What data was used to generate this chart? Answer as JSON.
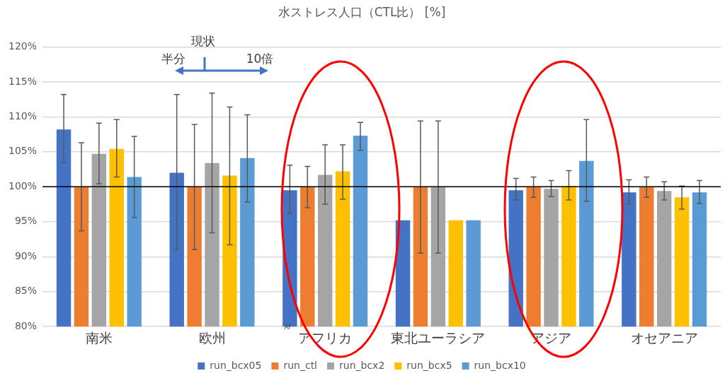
{
  "chart_data": {
    "type": "bar",
    "title": "水ストレス人口（CTL比） [%]",
    "categories": [
      "南米",
      "欧州",
      "アフリカ",
      "東北ユーラシア",
      "アジア",
      "オセアニア"
    ],
    "series": [
      {
        "name": "run_bcx05",
        "color": "#4472c4",
        "values": [
          108.2,
          102.0,
          99.5,
          95.2,
          99.5,
          99.2
        ],
        "errors": [
          [
            103.5,
            113.2
          ],
          [
            91.0,
            113.2
          ],
          [
            96.2,
            103.1
          ],
          null,
          [
            98.1,
            101.2
          ],
          [
            97.5,
            101.0
          ]
        ]
      },
      {
        "name": "run_ctl",
        "color": "#ed7d31",
        "values": [
          100,
          100,
          100,
          100,
          100,
          100
        ],
        "errors": [
          [
            93.7,
            106.3
          ],
          [
            91.0,
            108.9
          ],
          [
            97.0,
            102.9
          ],
          [
            90.5,
            109.4
          ],
          [
            98.5,
            101.4
          ],
          [
            98.5,
            101.4
          ]
        ]
      },
      {
        "name": "run_bcx2",
        "color": "#a5a5a5",
        "values": [
          104.7,
          103.4,
          101.7,
          100,
          99.7,
          99.4
        ],
        "errors": [
          [
            100.4,
            109.1
          ],
          [
            93.4,
            113.4
          ],
          [
            97.5,
            106.0
          ],
          [
            90.5,
            109.4
          ],
          [
            98.6,
            100.9
          ],
          [
            98.1,
            100.7
          ]
        ]
      },
      {
        "name": "run_bcx5",
        "color": "#ffc000",
        "values": [
          105.4,
          101.6,
          102.2,
          95.2,
          100.1,
          98.5
        ],
        "errors": [
          [
            101.4,
            109.6
          ],
          [
            91.7,
            111.4
          ],
          [
            98.2,
            106.0
          ],
          null,
          [
            98.1,
            102.3
          ],
          [
            96.8,
            100.1
          ]
        ]
      },
      {
        "name": "run_bcx10",
        "color": "#5b9bd5",
        "values": [
          101.4,
          104.1,
          107.3,
          95.2,
          103.7,
          99.2
        ],
        "errors": [
          [
            95.6,
            107.2
          ],
          [
            97.8,
            110.3
          ],
          [
            105.2,
            109.2
          ],
          null,
          [
            97.9,
            109.6
          ],
          [
            97.6,
            100.9
          ]
        ]
      }
    ],
    "ylim": [
      80,
      120
    ],
    "yticks": [
      {
        "value": 80,
        "label": "80%"
      },
      {
        "value": 85,
        "label": "85%"
      },
      {
        "value": 90,
        "label": "90%"
      },
      {
        "value": 95,
        "label": "95%"
      },
      {
        "value": 100,
        "label": "100%"
      },
      {
        "value": 105,
        "label": "105%"
      },
      {
        "value": 110,
        "label": "110%"
      },
      {
        "value": 115,
        "label": "115%"
      },
      {
        "value": 120,
        "label": "120%"
      }
    ],
    "ref_lines": [
      {
        "axis": "y",
        "value": 100,
        "color": "#000000"
      }
    ],
    "annotations": [
      "半分",
      "現状",
      "10倍",
      "Af"
    ],
    "grid": "y",
    "legend": "bottom"
  }
}
